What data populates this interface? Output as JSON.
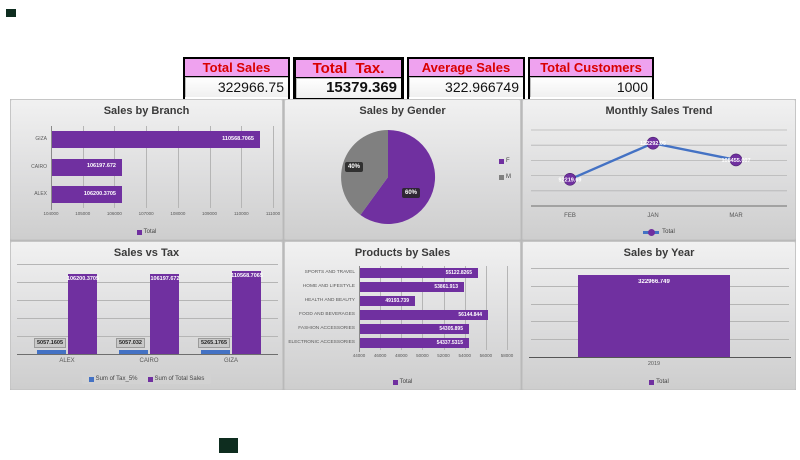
{
  "colors": {
    "purple": "#7030a0",
    "pie_gray": "#808080",
    "line_blue": "#4472c4",
    "tax_blue": "#4472c4",
    "kpi_header_bg": "#efa2ef",
    "kpi_header_text": "#d90000",
    "panel_title": "#3a3a3a",
    "artifact_mark": "#0e2d1f"
  },
  "kpis": [
    {
      "label": "Total Sales",
      "value": "322966.75"
    },
    {
      "label": "Total Tax.",
      "value": "15379.369"
    },
    {
      "label": "Average Sales",
      "value": "322.966749"
    },
    {
      "label": "Total Customers",
      "value": "1000"
    }
  ],
  "chart_data": [
    {
      "id": "sales_by_branch",
      "type": "bar",
      "orientation": "horizontal",
      "title": "Sales by Branch",
      "categories": [
        "GIZA",
        "CAIRO",
        "ALEX"
      ],
      "values": [
        110568.7065,
        106197.672,
        106200.3705
      ],
      "labels": [
        "110568.7065",
        "106197.672",
        "106200.3705"
      ],
      "xlim": [
        104000,
        111000
      ],
      "xticks": [
        "104000",
        "105000",
        "106000",
        "107000",
        "108000",
        "109000",
        "110000",
        "111000"
      ],
      "legend": [
        "Total"
      ],
      "grid": true
    },
    {
      "id": "sales_by_gender",
      "type": "pie",
      "title": "Sales by Gender",
      "labels": [
        "F",
        "M"
      ],
      "values": [
        60,
        40
      ],
      "display_labels": [
        "60%",
        "40%"
      ],
      "colors": [
        "#7030a0",
        "#808080"
      ],
      "legend_position": "right"
    },
    {
      "id": "monthly_sales_trend",
      "type": "line",
      "title": "Monthly Sales Trend",
      "categories": [
        "FEB",
        "JAN",
        "MAR"
      ],
      "values": [
        92219.69,
        122292.05,
        108455.007
      ],
      "labels": [
        "92219.69",
        "122292.05",
        "108455.007"
      ],
      "ylim": [
        70000,
        135000
      ],
      "legend": [
        "Total"
      ],
      "grid": true
    },
    {
      "id": "sales_vs_tax",
      "type": "bar",
      "orientation": "vertical",
      "title": "Sales vs Tax",
      "categories": [
        "ALEX",
        "CAIRO",
        "GIZA"
      ],
      "series": [
        {
          "name": "Sum of Tax_5%",
          "color": "#4472c4",
          "values": [
            5057.1605,
            5057.032,
            5265.1765
          ],
          "labels": [
            "5057.1605",
            "5057.032",
            "5265.1765"
          ]
        },
        {
          "name": "Sum of Total Sales",
          "color": "#7030a0",
          "values": [
            106200.3705,
            106197.672,
            110568.7065
          ],
          "labels": [
            "106200.3705",
            "106197.672",
            "110568.7065"
          ]
        }
      ],
      "ylim": [
        0,
        120000
      ],
      "grid": true
    },
    {
      "id": "products_by_sales",
      "type": "bar",
      "orientation": "horizontal",
      "title": "Products by Sales",
      "categories": [
        "SPORTS AND TRAVEL",
        "HOME AND LIFESTYLE",
        "HEALTH AND BEAUTY",
        "FOOD AND BEVERAGES",
        "FASHION ACCESSORIES",
        "ELECTRONIC ACCESSORIES"
      ],
      "values": [
        55122.8265,
        53861.913,
        49193.739,
        56144.844,
        54305.895,
        54337.5315
      ],
      "labels": [
        "55122.8265",
        "53861.913",
        "49193.739",
        "56144.844",
        "54305.895",
        "54337.5315"
      ],
      "xlim": [
        44000,
        58000
      ],
      "xticks": [
        "44000",
        "46000",
        "48000",
        "50000",
        "52000",
        "54000",
        "56000",
        "58000"
      ],
      "legend": [
        "Total"
      ],
      "grid": true
    },
    {
      "id": "sales_by_year",
      "type": "column",
      "title": "Sales by Year",
      "categories": [
        "2019"
      ],
      "values": [
        322966.749
      ],
      "labels": [
        "322966.749"
      ],
      "ylim": [
        0,
        350000
      ],
      "legend": [
        "Total"
      ],
      "grid": true
    }
  ]
}
